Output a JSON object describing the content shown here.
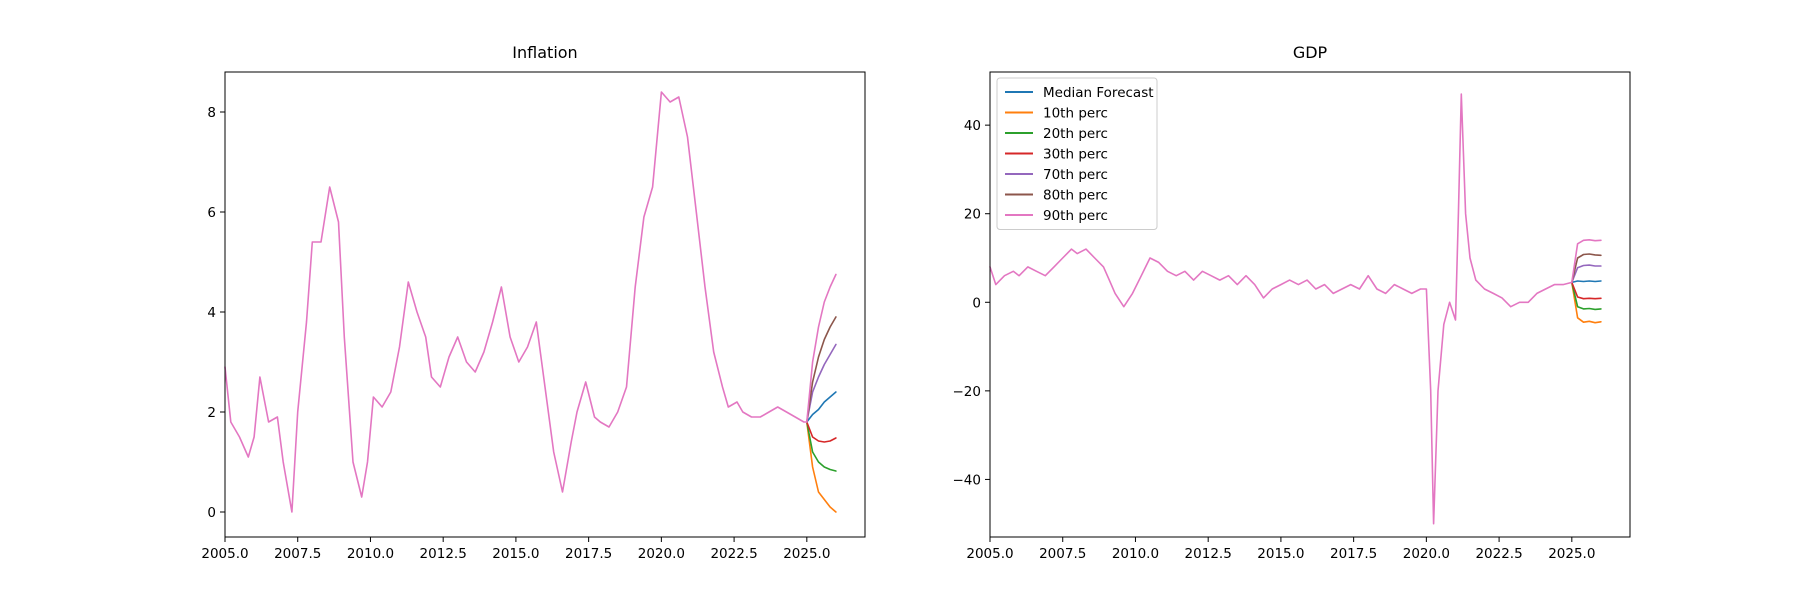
{
  "chart_data": [
    {
      "type": "line",
      "title": "Inflation",
      "xlabel": "",
      "ylabel": "",
      "xlim": [
        2005.0,
        2027.0
      ],
      "ylim": [
        -0.5,
        8.8
      ],
      "xticks": [
        2005.0,
        2007.5,
        2010.0,
        2012.5,
        2015.0,
        2017.5,
        2020.0,
        2022.5,
        2025.0
      ],
      "xtick_labels": [
        "2005.0",
        "2007.5",
        "2010.0",
        "2012.5",
        "2015.0",
        "2017.5",
        "2020.0",
        "2022.5",
        "2025.0"
      ],
      "yticks": [
        0,
        2,
        4,
        6,
        8
      ],
      "ytick_labels": [
        "0",
        "2",
        "4",
        "6",
        "8"
      ],
      "legend": false,
      "history": {
        "x": [
          2005.0,
          2005.2,
          2005.5,
          2005.8,
          2006.0,
          2006.2,
          2006.5,
          2006.8,
          2007.0,
          2007.3,
          2007.5,
          2007.8,
          2008.0,
          2008.3,
          2008.6,
          2008.9,
          2009.1,
          2009.4,
          2009.7,
          2009.9,
          2010.1,
          2010.4,
          2010.7,
          2011.0,
          2011.3,
          2011.6,
          2011.9,
          2012.1,
          2012.4,
          2012.7,
          2013.0,
          2013.3,
          2013.6,
          2013.9,
          2014.2,
          2014.5,
          2014.8,
          2015.1,
          2015.4,
          2015.7,
          2016.0,
          2016.3,
          2016.6,
          2016.9,
          2017.1,
          2017.4,
          2017.7,
          2017.9,
          2018.2,
          2018.5,
          2018.8,
          2019.1,
          2019.4,
          2019.7,
          2020.0,
          2020.3,
          2020.6,
          2020.9,
          2021.2,
          2021.5,
          2021.8,
          2022.1,
          2022.3,
          2022.6,
          2022.8,
          2023.1,
          2023.4,
          2023.7,
          2024.0,
          2024.3,
          2024.6,
          2024.9,
          2025.0
        ],
        "y": [
          2.9,
          1.8,
          1.5,
          1.1,
          1.5,
          2.7,
          1.8,
          1.9,
          1.0,
          0.0,
          2.0,
          3.8,
          5.4,
          5.4,
          6.5,
          5.8,
          3.5,
          1.0,
          0.3,
          1.0,
          2.3,
          2.1,
          2.4,
          3.3,
          4.6,
          4.0,
          3.5,
          2.7,
          2.5,
          3.1,
          3.5,
          3.0,
          2.8,
          3.2,
          3.8,
          4.5,
          3.5,
          3.0,
          3.3,
          3.8,
          2.5,
          1.2,
          0.4,
          1.4,
          2.0,
          2.6,
          1.9,
          1.8,
          1.7,
          2.0,
          2.5,
          4.5,
          5.9,
          6.5,
          8.4,
          8.2,
          8.3,
          7.5,
          6.0,
          4.5,
          3.2,
          2.5,
          2.1,
          2.2,
          2.0,
          1.9,
          1.9,
          2.0,
          2.1,
          2.0,
          1.9,
          1.8,
          1.8
        ]
      },
      "forecast_x": [
        2025.0,
        2025.2,
        2025.4,
        2025.6,
        2025.8,
        2026.0
      ],
      "series": [
        {
          "name": "Median Forecast",
          "color": "#1f77b4",
          "values": [
            1.8,
            1.95,
            2.05,
            2.2,
            2.3,
            2.4
          ]
        },
        {
          "name": "10th perc",
          "color": "#ff7f0e",
          "values": [
            1.8,
            0.9,
            0.4,
            0.25,
            0.1,
            0.0
          ]
        },
        {
          "name": "20th perc",
          "color": "#2ca02c",
          "values": [
            1.8,
            1.2,
            1.0,
            0.9,
            0.85,
            0.82
          ]
        },
        {
          "name": "30th perc",
          "color": "#d62728",
          "values": [
            1.8,
            1.5,
            1.42,
            1.4,
            1.42,
            1.48
          ]
        },
        {
          "name": "70th perc",
          "color": "#9467bd",
          "values": [
            1.8,
            2.4,
            2.7,
            2.95,
            3.15,
            3.35
          ]
        },
        {
          "name": "80th perc",
          "color": "#8c564b",
          "values": [
            1.8,
            2.6,
            3.1,
            3.45,
            3.7,
            3.9
          ]
        },
        {
          "name": "90th perc",
          "color": "#e377c2",
          "values": [
            1.8,
            3.0,
            3.7,
            4.2,
            4.5,
            4.75
          ]
        }
      ]
    },
    {
      "type": "line",
      "title": "GDP",
      "xlabel": "",
      "ylabel": "",
      "xlim": [
        2005.0,
        2027.0
      ],
      "ylim": [
        -53,
        52
      ],
      "xticks": [
        2005.0,
        2007.5,
        2010.0,
        2012.5,
        2015.0,
        2017.5,
        2020.0,
        2022.5,
        2025.0
      ],
      "xtick_labels": [
        "2005.0",
        "2007.5",
        "2010.0",
        "2012.5",
        "2015.0",
        "2017.5",
        "2020.0",
        "2022.5",
        "2025.0"
      ],
      "yticks": [
        -40,
        -20,
        0,
        20,
        40
      ],
      "ytick_labels": [
        "−40",
        "−20",
        "0",
        "20",
        "40"
      ],
      "legend": true,
      "legend_location": "top-left",
      "history": {
        "x": [
          2005.0,
          2005.2,
          2005.5,
          2005.8,
          2006.0,
          2006.3,
          2006.6,
          2006.9,
          2007.2,
          2007.5,
          2007.8,
          2008.0,
          2008.3,
          2008.6,
          2008.9,
          2009.1,
          2009.3,
          2009.6,
          2009.9,
          2010.2,
          2010.5,
          2010.8,
          2011.1,
          2011.4,
          2011.7,
          2012.0,
          2012.3,
          2012.6,
          2012.9,
          2013.2,
          2013.5,
          2013.8,
          2014.1,
          2014.4,
          2014.7,
          2015.0,
          2015.3,
          2015.6,
          2015.9,
          2016.2,
          2016.5,
          2016.8,
          2017.1,
          2017.4,
          2017.7,
          2018.0,
          2018.3,
          2018.6,
          2018.9,
          2019.2,
          2019.5,
          2019.8,
          2020.0,
          2020.15,
          2020.25,
          2020.4,
          2020.6,
          2020.8,
          2021.0,
          2021.1,
          2021.2,
          2021.35,
          2021.5,
          2021.7,
          2022.0,
          2022.3,
          2022.6,
          2022.9,
          2023.2,
          2023.5,
          2023.8,
          2024.1,
          2024.4,
          2024.7,
          2025.0
        ],
        "y": [
          8,
          4,
          6,
          7,
          6,
          8,
          7,
          6,
          8,
          10,
          12,
          11,
          12,
          10,
          8,
          5,
          2,
          -1,
          2,
          6,
          10,
          9,
          7,
          6,
          7,
          5,
          7,
          6,
          5,
          6,
          4,
          6,
          4,
          1,
          3,
          4,
          5,
          4,
          5,
          3,
          4,
          2,
          3,
          4,
          3,
          6,
          3,
          2,
          4,
          3,
          2,
          3,
          3,
          -20,
          -50,
          -20,
          -5,
          0,
          -4,
          20,
          47,
          20,
          10,
          5,
          3,
          2,
          1,
          -1,
          0,
          0,
          2,
          3,
          4,
          4,
          4.5
        ]
      },
      "forecast_x": [
        2025.0,
        2025.2,
        2025.4,
        2025.6,
        2025.8,
        2026.0
      ],
      "series": [
        {
          "name": "Median Forecast",
          "color": "#1f77b4",
          "values": [
            4.5,
            4.8,
            4.7,
            4.8,
            4.7,
            4.8
          ]
        },
        {
          "name": "10th perc",
          "color": "#ff7f0e",
          "values": [
            4.5,
            -3.5,
            -4.5,
            -4.3,
            -4.6,
            -4.4
          ]
        },
        {
          "name": "20th perc",
          "color": "#2ca02c",
          "values": [
            4.5,
            -1.0,
            -1.5,
            -1.4,
            -1.6,
            -1.5
          ]
        },
        {
          "name": "30th perc",
          "color": "#d62728",
          "values": [
            4.5,
            1.2,
            0.8,
            0.9,
            0.8,
            0.9
          ]
        },
        {
          "name": "70th perc",
          "color": "#9467bd",
          "values": [
            4.5,
            7.8,
            8.3,
            8.4,
            8.2,
            8.2
          ]
        },
        {
          "name": "80th perc",
          "color": "#8c564b",
          "values": [
            4.5,
            10.0,
            10.8,
            10.9,
            10.7,
            10.6
          ]
        },
        {
          "name": "90th perc",
          "color": "#e377c2",
          "values": [
            4.5,
            13.2,
            14.0,
            14.1,
            13.9,
            14.0
          ]
        }
      ]
    }
  ]
}
